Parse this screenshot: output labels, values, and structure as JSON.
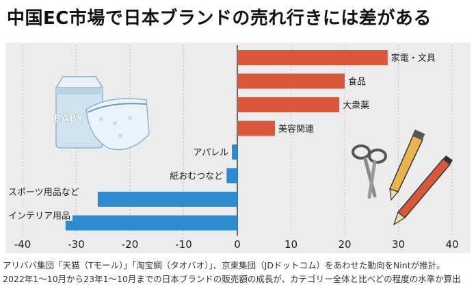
{
  "title": "中国EC市場で日本ブランドの売れ行きには差がある",
  "notes": {
    "line1": "アリババ集団「天猫（Tモール）」「淘宝網（タオバオ）」、京東集団（JDドットコム）をあわせた動向をNintが推計。",
    "line2": "2022年1～10月から23年1～10月までの日本ブランドの販売額の成長が、カテゴリー全体と比べどの程度の水準か算出"
  },
  "colors": {
    "positive": "#d9573a",
    "negative": "#2e8bd0",
    "panel": "#ececec",
    "grid": "#bdbdbd"
  },
  "illustrations": {
    "left": "baby-diapers-illustration",
    "right": "stationery-illustration"
  },
  "chart_data": {
    "type": "bar",
    "orientation": "horizontal",
    "categories": [
      "家電・文具",
      "食品",
      "大衆薬",
      "美容関連",
      "アパレル",
      "紙おむつなど",
      "スポーツ用品など",
      "インテリア用品"
    ],
    "values": [
      28,
      20,
      19,
      7,
      -1,
      -2,
      -26,
      -32
    ],
    "xlim": [
      -40,
      40
    ],
    "xticks": [
      "-40",
      "-30",
      "-20",
      "-10",
      "0",
      "10",
      "20",
      "30",
      "40"
    ],
    "grid": true
  }
}
